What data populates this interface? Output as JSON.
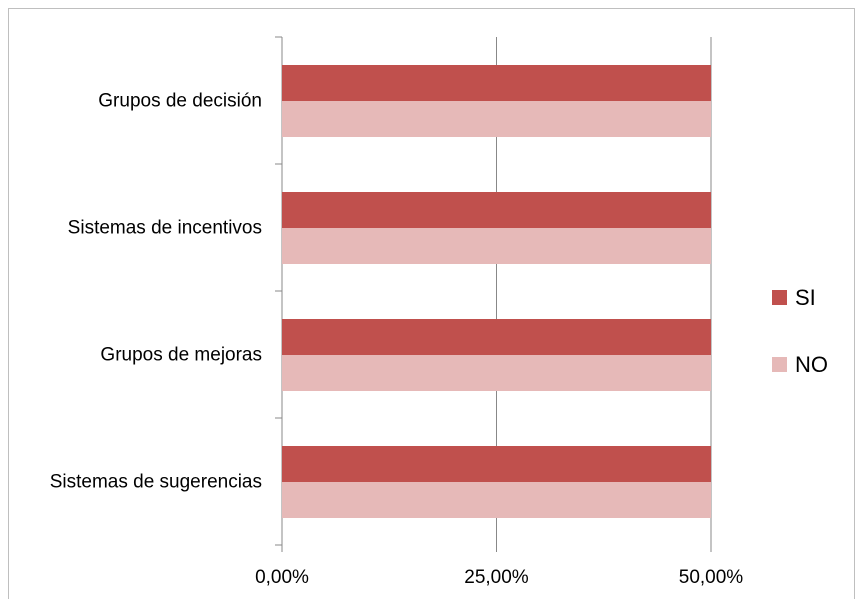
{
  "chart_data": {
    "type": "barh",
    "categories": [
      "Grupos de decisión",
      "Sistemas de incentivos",
      "Grupos de mejoras",
      "Sistemas de sugerencias"
    ],
    "series": [
      {
        "name": "SI",
        "color": "#c0504d",
        "values": [
          50,
          50,
          50,
          50
        ]
      },
      {
        "name": "NO",
        "color": "#e6b9b8",
        "values": [
          50,
          50,
          50,
          50
        ]
      }
    ],
    "xlim": [
      0,
      50
    ],
    "xticks": [
      {
        "value": 0,
        "label": "0,00%"
      },
      {
        "value": 25,
        "label": "25,00%"
      },
      {
        "value": 50,
        "label": "50,00%"
      }
    ],
    "grid": true,
    "legend": "right"
  }
}
